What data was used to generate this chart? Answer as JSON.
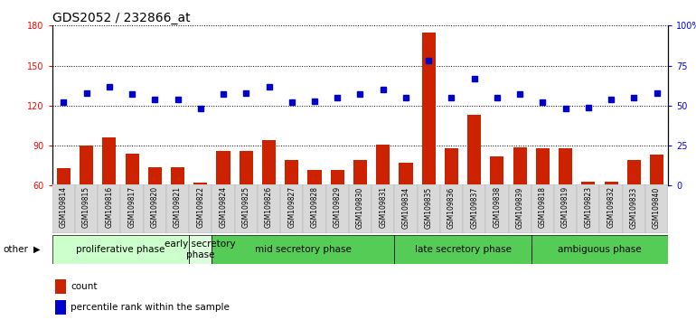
{
  "title": "GDS2052 / 232866_at",
  "samples": [
    "GSM109814",
    "GSM109815",
    "GSM109816",
    "GSM109817",
    "GSM109820",
    "GSM109821",
    "GSM109822",
    "GSM109824",
    "GSM109825",
    "GSM109826",
    "GSM109827",
    "GSM109828",
    "GSM109829",
    "GSM109830",
    "GSM109831",
    "GSM109834",
    "GSM109835",
    "GSM109836",
    "GSM109837",
    "GSM109838",
    "GSM109839",
    "GSM109818",
    "GSM109819",
    "GSM109823",
    "GSM109832",
    "GSM109833",
    "GSM109840"
  ],
  "counts": [
    73,
    90,
    96,
    84,
    74,
    74,
    62,
    86,
    86,
    94,
    79,
    72,
    72,
    79,
    91,
    77,
    175,
    88,
    113,
    82,
    89,
    88,
    88,
    63,
    63,
    79,
    83
  ],
  "percentiles": [
    52,
    58,
    62,
    57,
    54,
    54,
    48,
    57,
    58,
    62,
    52,
    53,
    55,
    57,
    60,
    55,
    78,
    55,
    67,
    55,
    57,
    52,
    48,
    49,
    54,
    55,
    58
  ],
  "phases": [
    {
      "label": "proliferative phase",
      "start": 0,
      "end": 6,
      "color": "#ccffcc"
    },
    {
      "label": "early secretory\nphase",
      "start": 6,
      "end": 7,
      "color": "#ddfcdd"
    },
    {
      "label": "mid secretory phase",
      "start": 7,
      "end": 15,
      "color": "#55cc55"
    },
    {
      "label": "late secretory phase",
      "start": 15,
      "end": 21,
      "color": "#55cc55"
    },
    {
      "label": "ambiguous phase",
      "start": 21,
      "end": 27,
      "color": "#55cc55"
    }
  ],
  "ylim_left": [
    60,
    180
  ],
  "ylim_right": [
    0,
    100
  ],
  "yticks_left": [
    60,
    90,
    120,
    150,
    180
  ],
  "yticks_right": [
    0,
    25,
    50,
    75,
    100
  ],
  "ytick_labels_right": [
    "0",
    "25",
    "50",
    "75",
    "100%"
  ],
  "bar_color": "#cc2200",
  "dot_color": "#0000cc",
  "bar_bottom": 60,
  "title_fontsize": 10,
  "tick_fontsize": 7,
  "phase_fontsize": 7.5
}
